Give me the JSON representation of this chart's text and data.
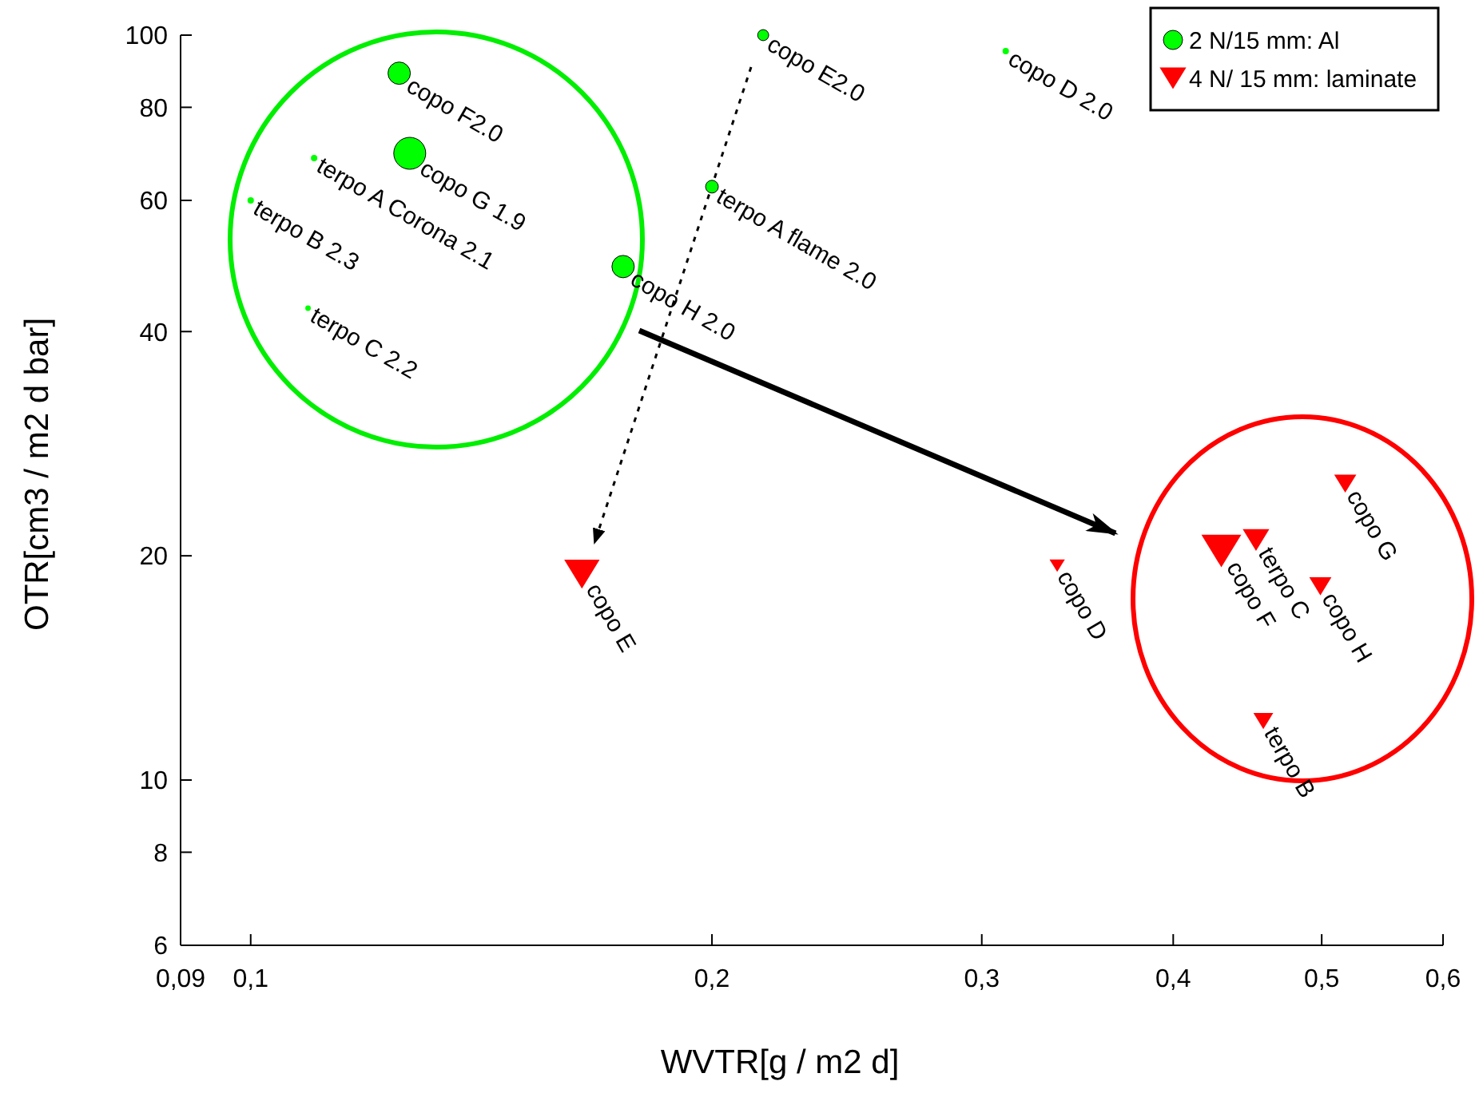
{
  "chart_data": {
    "type": "bubble",
    "xlabel": "WVTR[g / m2 d]",
    "ylabel": "OTR[cm3 / m2 d bar]",
    "log": "xy",
    "xlim": [
      0.09,
      0.6
    ],
    "ylim": [
      6,
      100
    ],
    "xticks": [
      {
        "value": 0.09,
        "label": "0,09"
      },
      {
        "value": 0.1,
        "label": "0,1"
      },
      {
        "value": 0.2,
        "label": "0,2"
      },
      {
        "value": 0.3,
        "label": "0,3"
      },
      {
        "value": 0.4,
        "label": "0,4"
      },
      {
        "value": 0.5,
        "label": "0,5"
      },
      {
        "value": 0.6,
        "label": "0,6"
      }
    ],
    "yticks": [
      6,
      8,
      10,
      20,
      40,
      60,
      80,
      100
    ],
    "legend": "top right",
    "series": [
      {
        "name": "2 N/15 mm: Al",
        "color": "#00ff00",
        "marker": "circle",
        "x": [
          0.125,
          0.127,
          0.11,
          0.1,
          0.109,
          0.175,
          0.2,
          0.216,
          0.311
        ],
        "values": [
          88.9,
          69.4,
          68.4,
          60,
          43,
          48.9,
          62.6,
          100,
          95.2
        ],
        "sizes": [
          0.49,
          1,
          0.04,
          0.04,
          0.03,
          0.49,
          0.16,
          0.12,
          0.04
        ]
      },
      {
        "name": "4 N/ 15 mm: laminate",
        "color": "#ff0000",
        "marker": "triangle",
        "x": [
          0.1645,
          0.336,
          0.453,
          0.43,
          0.518,
          0.499,
          0.458
        ],
        "values": [
          18.9,
          19.4,
          21,
          20.3,
          25,
          18.2,
          12
        ],
        "sizes": [
          0.64,
          0.12,
          0.36,
          0.81,
          0.25,
          0.25,
          0.2
        ]
      }
    ],
    "annotations": [
      {
        "text": "copo F2.0",
        "x": 0.125,
        "y": 88.9
      },
      {
        "text": "copo G 1.9",
        "x": 0.127,
        "y": 69.4
      },
      {
        "text": "terpo A Corona 2.1",
        "x": 0.11,
        "y": 68.4
      },
      {
        "text": "terpo B 2.3",
        "x": 0.1,
        "y": 60
      },
      {
        "text": "terpo C 2.2",
        "x": 0.109,
        "y": 43
      },
      {
        "text": "copo H 2.0",
        "x": 0.175,
        "y": 48.9
      },
      {
        "text": "terpo A flame 2.0",
        "x": 0.2,
        "y": 62.6
      },
      {
        "text": "copo E2.0",
        "x": 0.216,
        "y": 100
      },
      {
        "text": "copo D 2.0",
        "x": 0.311,
        "y": 95.2
      },
      {
        "text": "copo E",
        "x": 0.1645,
        "y": 18.9
      },
      {
        "text": "copo D",
        "x": 0.336,
        "y": 19.4
      },
      {
        "text": "terpo C",
        "x": 0.453,
        "y": 21
      },
      {
        "text": "copo F",
        "x": 0.43,
        "y": 20.3
      },
      {
        "text": "copo G",
        "x": 0.518,
        "y": 25
      },
      {
        "text": "copo H",
        "x": 0.499,
        "y": 18.2
      },
      {
        "text": "terpo B",
        "x": 0.458,
        "y": 12
      }
    ]
  }
}
